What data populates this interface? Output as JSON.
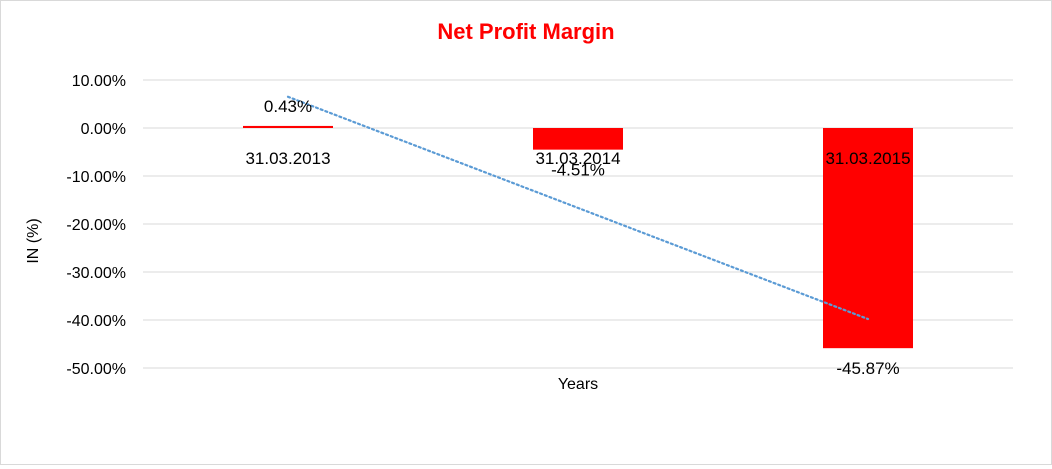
{
  "chart_data": {
    "type": "bar",
    "title": "Net Profit Margin",
    "xlabel": "Years",
    "ylabel": "IN (%)",
    "categories": [
      "31.03.2013",
      "31.03.2014",
      "31.03.2015"
    ],
    "values": [
      0.43,
      -4.51,
      -45.87
    ],
    "data_labels": [
      "0.43%",
      "-4.51%",
      "-45.87%"
    ],
    "ylim": [
      -50,
      10
    ],
    "y_ticks": [
      10,
      0,
      -10,
      -20,
      -30,
      -40,
      -50
    ],
    "y_tick_labels": [
      "10.00%",
      "0.00%",
      "-10.00%",
      "-20.00%",
      "-30.00%",
      "-40.00%",
      "-50.00%"
    ],
    "grid": true,
    "trendline": {
      "type": "linear",
      "style": "dotted"
    },
    "colors": {
      "bar": "#ff0000",
      "title": "#ff0000",
      "trendline": "#5b9bd5",
      "grid": "#d9d9d9"
    }
  }
}
